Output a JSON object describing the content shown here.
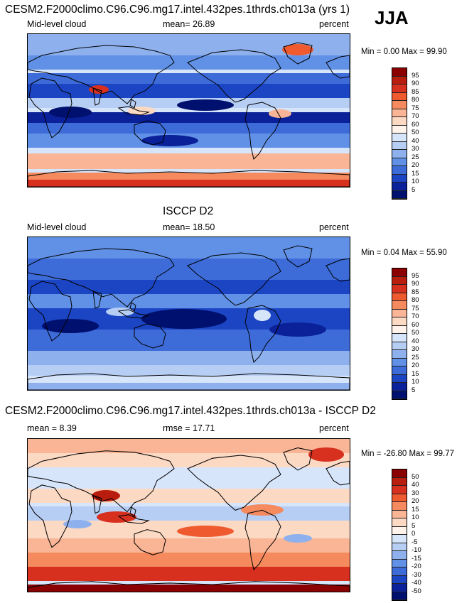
{
  "panels": [
    {
      "title": "CESM2.F2000climo.C96.C96.mg17.intel.432pes.1thrds.ch013a (yrs 1)",
      "left_label": "Mid-level cloud",
      "center_label": "mean=  26.89",
      "right_label": "percent",
      "minmax": "Min =   0.00 Max =  99.90",
      "colorbar_labels": [
        "95",
        "90",
        "85",
        "80",
        "75",
        "70",
        "60",
        "50",
        "40",
        "30",
        "25",
        "20",
        "15",
        "10",
        "5"
      ],
      "colorbar_colors": [
        "#8b0000",
        "#b81d0d",
        "#d7301f",
        "#ef5a2f",
        "#f58a5e",
        "#f9b595",
        "#fcd9c3",
        "#fff3eb",
        "#d7e5fb",
        "#b7cef4",
        "#8eb1ee",
        "#6191e6",
        "#3d6bd8",
        "#1c45c4",
        "#0b2199",
        "#00106e"
      ],
      "map_type": "model"
    },
    {
      "title": "ISCCP D2",
      "left_label": "Mid-level cloud",
      "center_label": "mean=  18.50",
      "right_label": "percent",
      "minmax": "Min =   0.04 Max =  55.90",
      "colorbar_labels": [
        "95",
        "90",
        "85",
        "80",
        "75",
        "70",
        "60",
        "50",
        "40",
        "30",
        "25",
        "20",
        "15",
        "10",
        "5"
      ],
      "colorbar_colors": [
        "#8b0000",
        "#b81d0d",
        "#d7301f",
        "#ef5a2f",
        "#f58a5e",
        "#f9b595",
        "#fcd9c3",
        "#fff3eb",
        "#d7e5fb",
        "#b7cef4",
        "#8eb1ee",
        "#6191e6",
        "#3d6bd8",
        "#1c45c4",
        "#0b2199",
        "#00106e"
      ],
      "map_type": "obs"
    },
    {
      "title": "CESM2.F2000climo.C96.C96.mg17.intel.432pes.1thrds.ch013a - ISCCP D2",
      "left_label": "mean =   8.39",
      "center_label": "rmse =  17.71",
      "right_label": "percent",
      "minmax": "Min = -26.80 Max =  99.77",
      "colorbar_labels": [
        "50",
        "40",
        "30",
        "20",
        "15",
        "10",
        "5",
        "0",
        "-5",
        "-10",
        "-15",
        "-20",
        "-30",
        "-40",
        "-50"
      ],
      "colorbar_colors": [
        "#8b0000",
        "#b81d0d",
        "#d7301f",
        "#ef5a2f",
        "#f58a5e",
        "#f9b595",
        "#fcd9c3",
        "#fff3eb",
        "#d7e5fb",
        "#b7cef4",
        "#8eb1ee",
        "#6191e6",
        "#3d6bd8",
        "#1c45c4",
        "#0b2199",
        "#00106e"
      ],
      "map_type": "diff"
    }
  ],
  "season": "JJA"
}
